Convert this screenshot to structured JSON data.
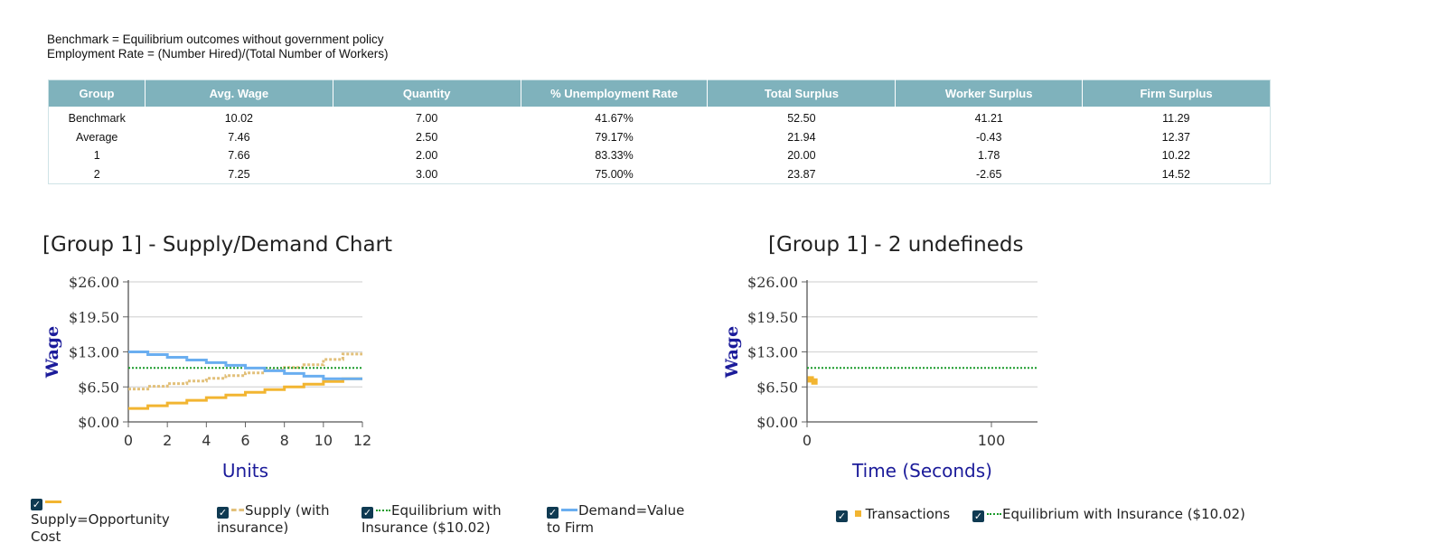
{
  "notes": {
    "benchmark": "Benchmark = Equilibrium outcomes without government policy",
    "employment": "Employment Rate = (Number Hired)/(Total Number of Workers)"
  },
  "table": {
    "headers": [
      "Group",
      "Avg. Wage",
      "Quantity",
      "% Unemployment Rate",
      "Total Surplus",
      "Worker Surplus",
      "Firm Surplus"
    ],
    "rows": [
      [
        "Benchmark",
        "10.02",
        "7.00",
        "41.67%",
        "52.50",
        "41.21",
        "11.29"
      ],
      [
        "Average",
        "7.46",
        "2.50",
        "79.17%",
        "21.94",
        "-0.43",
        "12.37"
      ],
      [
        "1",
        "7.66",
        "2.00",
        "83.33%",
        "20.00",
        "1.78",
        "10.22"
      ],
      [
        "2",
        "7.25",
        "3.00",
        "75.00%",
        "23.87",
        "-2.65",
        "14.52"
      ]
    ]
  },
  "colors": {
    "supply": "#f2b531",
    "supply_insurance": "#e2c07a",
    "equilibrium": "#1a9a2a",
    "demand": "#6aaef0",
    "transactions": "#f2b531",
    "axis_title": "#1b1b9a",
    "grid": "#d6d6d6"
  },
  "chart_data": [
    {
      "type": "line",
      "title": "[Group 1] - Supply/Demand Chart",
      "xlabel": "Units",
      "ylabel": "Wage",
      "xlim": [
        0,
        12
      ],
      "ylim": [
        0,
        26
      ],
      "x_ticks": [
        "0",
        "2",
        "4",
        "6",
        "8",
        "10",
        "12"
      ],
      "y_ticks": [
        "$0.00",
        "$6.50",
        "$13.00",
        "$19.50",
        "$26.00"
      ],
      "grid": true,
      "legend_position": "bottom",
      "series": [
        {
          "name": "Supply=Opportunity Cost",
          "style": "step",
          "values": [
            2.5,
            3.0,
            3.5,
            4.0,
            4.5,
            5.0,
            5.5,
            6.0,
            6.5,
            7.0,
            7.5,
            8.0
          ]
        },
        {
          "name": "Supply (with insurance)",
          "style": "step-dashed",
          "values": [
            6.1,
            6.6,
            7.1,
            7.6,
            8.1,
            8.6,
            9.1,
            9.6,
            10.1,
            10.6,
            11.6,
            12.6
          ]
        },
        {
          "name": "Equilibrium with Insurance ($10.02)",
          "style": "dotted",
          "y": 10.02
        },
        {
          "name": "Demand=Value to Firm",
          "style": "step",
          "values": [
            13.0,
            12.5,
            12.0,
            11.5,
            11.0,
            10.5,
            10.0,
            9.5,
            9.0,
            8.5,
            8.0,
            8.0
          ]
        }
      ]
    },
    {
      "type": "scatter",
      "title": "[Group 1] - 2 undefineds",
      "xlabel": "Time (Seconds)",
      "ylabel": "Wage",
      "xlim": [
        0,
        125
      ],
      "ylim": [
        0,
        26
      ],
      "x_ticks": [
        "0",
        "100"
      ],
      "y_ticks": [
        "$0.00",
        "$6.50",
        "$13.00",
        "$19.50",
        "$26.00"
      ],
      "grid": true,
      "legend_position": "bottom",
      "series": [
        {
          "name": "Transactions",
          "points": [
            [
              2,
              7.9
            ],
            [
              4,
              7.5
            ]
          ]
        },
        {
          "name": "Equilibrium with Insurance ($10.02)",
          "style": "dotted",
          "y": 10.02
        }
      ]
    }
  ]
}
